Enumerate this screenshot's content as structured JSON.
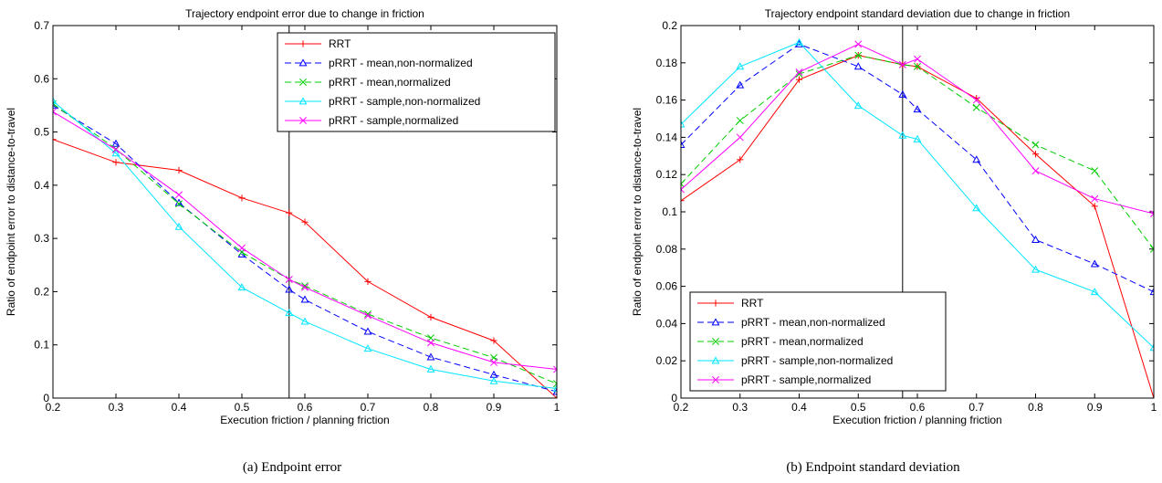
{
  "chart_data": [
    {
      "type": "line",
      "title": "Trajectory endpoint error due to change in friction",
      "xlabel": "Execution friction / planning friction",
      "ylabel": "Ratio of endpoint error to distance-to-travel",
      "xlim": [
        0.2,
        1
      ],
      "ylim": [
        0,
        0.7
      ],
      "xticks": [
        "0.2",
        "0.3",
        "0.4",
        "0.5",
        "0.6",
        "0.7",
        "0.8",
        "0.9",
        "1"
      ],
      "yticks": [
        "0",
        "0.1",
        "0.2",
        "0.3",
        "0.4",
        "0.5",
        "0.6",
        "0.7"
      ],
      "grid": false,
      "legend_position": "top-right",
      "vertical_line_x": 0.575,
      "series": [
        {
          "name": "RRT",
          "color": "#ff0000",
          "dash": "solid",
          "marker": "plus",
          "x": [
            0.2,
            0.3,
            0.4,
            0.5,
            0.575,
            0.6,
            0.7,
            0.8,
            0.9,
            1.0
          ],
          "y": [
            0.486,
            0.443,
            0.428,
            0.376,
            0.348,
            0.331,
            0.219,
            0.152,
            0.108,
            0.0
          ]
        },
        {
          "name": "pRRT - mean,non-normalized",
          "color": "#0000ff",
          "dash": "dash",
          "marker": "triangle",
          "x": [
            0.2,
            0.3,
            0.4,
            0.5,
            0.575,
            0.6,
            0.7,
            0.8,
            0.9,
            1.0
          ],
          "y": [
            0.55,
            0.478,
            0.367,
            0.27,
            0.204,
            0.185,
            0.125,
            0.077,
            0.044,
            0.012
          ]
        },
        {
          "name": "pRRT - mean,normalized",
          "color": "#00cc00",
          "dash": "dash",
          "marker": "x",
          "x": [
            0.2,
            0.3,
            0.4,
            0.5,
            0.575,
            0.6,
            0.7,
            0.8,
            0.9,
            1.0
          ],
          "y": [
            0.553,
            0.468,
            0.365,
            0.274,
            0.223,
            0.211,
            0.158,
            0.113,
            0.076,
            0.027
          ]
        },
        {
          "name": "pRRT - sample,non-normalized",
          "color": "#00e5ff",
          "dash": "solid",
          "marker": "triangle",
          "x": [
            0.2,
            0.3,
            0.4,
            0.5,
            0.575,
            0.6,
            0.7,
            0.8,
            0.9,
            1.0
          ],
          "y": [
            0.558,
            0.46,
            0.322,
            0.208,
            0.16,
            0.144,
            0.093,
            0.054,
            0.032,
            0.018
          ]
        },
        {
          "name": "pRRT - sample,normalized",
          "color": "#ff00ff",
          "dash": "solid",
          "marker": "x",
          "x": [
            0.2,
            0.3,
            0.4,
            0.5,
            0.575,
            0.6,
            0.7,
            0.8,
            0.9,
            1.0
          ],
          "y": [
            0.538,
            0.467,
            0.382,
            0.282,
            0.223,
            0.208,
            0.155,
            0.104,
            0.067,
            0.054
          ]
        }
      ]
    },
    {
      "type": "line",
      "title": "Trajectory endpoint standard deviation due to change in friction",
      "xlabel": "Execution friction / planning friction",
      "ylabel": "Ratio of endpoint error to distance-to-travel",
      "xlim": [
        0.2,
        1
      ],
      "ylim": [
        0,
        0.2
      ],
      "xticks": [
        "0.2",
        "0.3",
        "0.4",
        "0.5",
        "0.6",
        "0.7",
        "0.8",
        "0.9",
        "1"
      ],
      "yticks": [
        "0",
        "0.02",
        "0.04",
        "0.06",
        "0.08",
        "0.1",
        "0.12",
        "0.14",
        "0.16",
        "0.18",
        "0.2"
      ],
      "grid": false,
      "legend_position": "bottom-left",
      "vertical_line_x": 0.575,
      "series": [
        {
          "name": "RRT",
          "color": "#ff0000",
          "dash": "solid",
          "marker": "plus",
          "x": [
            0.2,
            0.3,
            0.4,
            0.5,
            0.575,
            0.6,
            0.7,
            0.8,
            0.9,
            1.0
          ],
          "y": [
            0.106,
            0.128,
            0.171,
            0.184,
            0.179,
            0.178,
            0.161,
            0.131,
            0.103,
            0.0
          ]
        },
        {
          "name": "pRRT - mean,non-normalized",
          "color": "#0000ff",
          "dash": "dash",
          "marker": "triangle",
          "x": [
            0.2,
            0.3,
            0.4,
            0.5,
            0.575,
            0.6,
            0.7,
            0.8,
            0.9,
            1.0
          ],
          "y": [
            0.136,
            0.168,
            0.19,
            0.178,
            0.163,
            0.155,
            0.128,
            0.085,
            0.072,
            0.057
          ]
        },
        {
          "name": "pRRT - mean,normalized",
          "color": "#00cc00",
          "dash": "dash",
          "marker": "x",
          "x": [
            0.2,
            0.3,
            0.4,
            0.5,
            0.575,
            0.6,
            0.7,
            0.8,
            0.9,
            1.0
          ],
          "y": [
            0.115,
            0.149,
            0.174,
            0.184,
            0.179,
            0.178,
            0.156,
            0.136,
            0.122,
            0.08
          ]
        },
        {
          "name": "pRRT - sample,non-normalized",
          "color": "#00e5ff",
          "dash": "solid",
          "marker": "triangle",
          "x": [
            0.2,
            0.3,
            0.4,
            0.5,
            0.575,
            0.6,
            0.7,
            0.8,
            0.9,
            1.0
          ],
          "y": [
            0.147,
            0.178,
            0.191,
            0.157,
            0.141,
            0.139,
            0.102,
            0.069,
            0.057,
            0.027
          ]
        },
        {
          "name": "pRRT - sample,normalized",
          "color": "#ff00ff",
          "dash": "solid",
          "marker": "x",
          "x": [
            0.2,
            0.3,
            0.4,
            0.5,
            0.575,
            0.6,
            0.7,
            0.8,
            0.9,
            1.0
          ],
          "y": [
            0.112,
            0.14,
            0.175,
            0.19,
            0.179,
            0.182,
            0.16,
            0.122,
            0.107,
            0.099
          ]
        }
      ]
    }
  ],
  "captions": {
    "a": "(a) Endpoint error",
    "b": "(b) Endpoint standard deviation"
  }
}
